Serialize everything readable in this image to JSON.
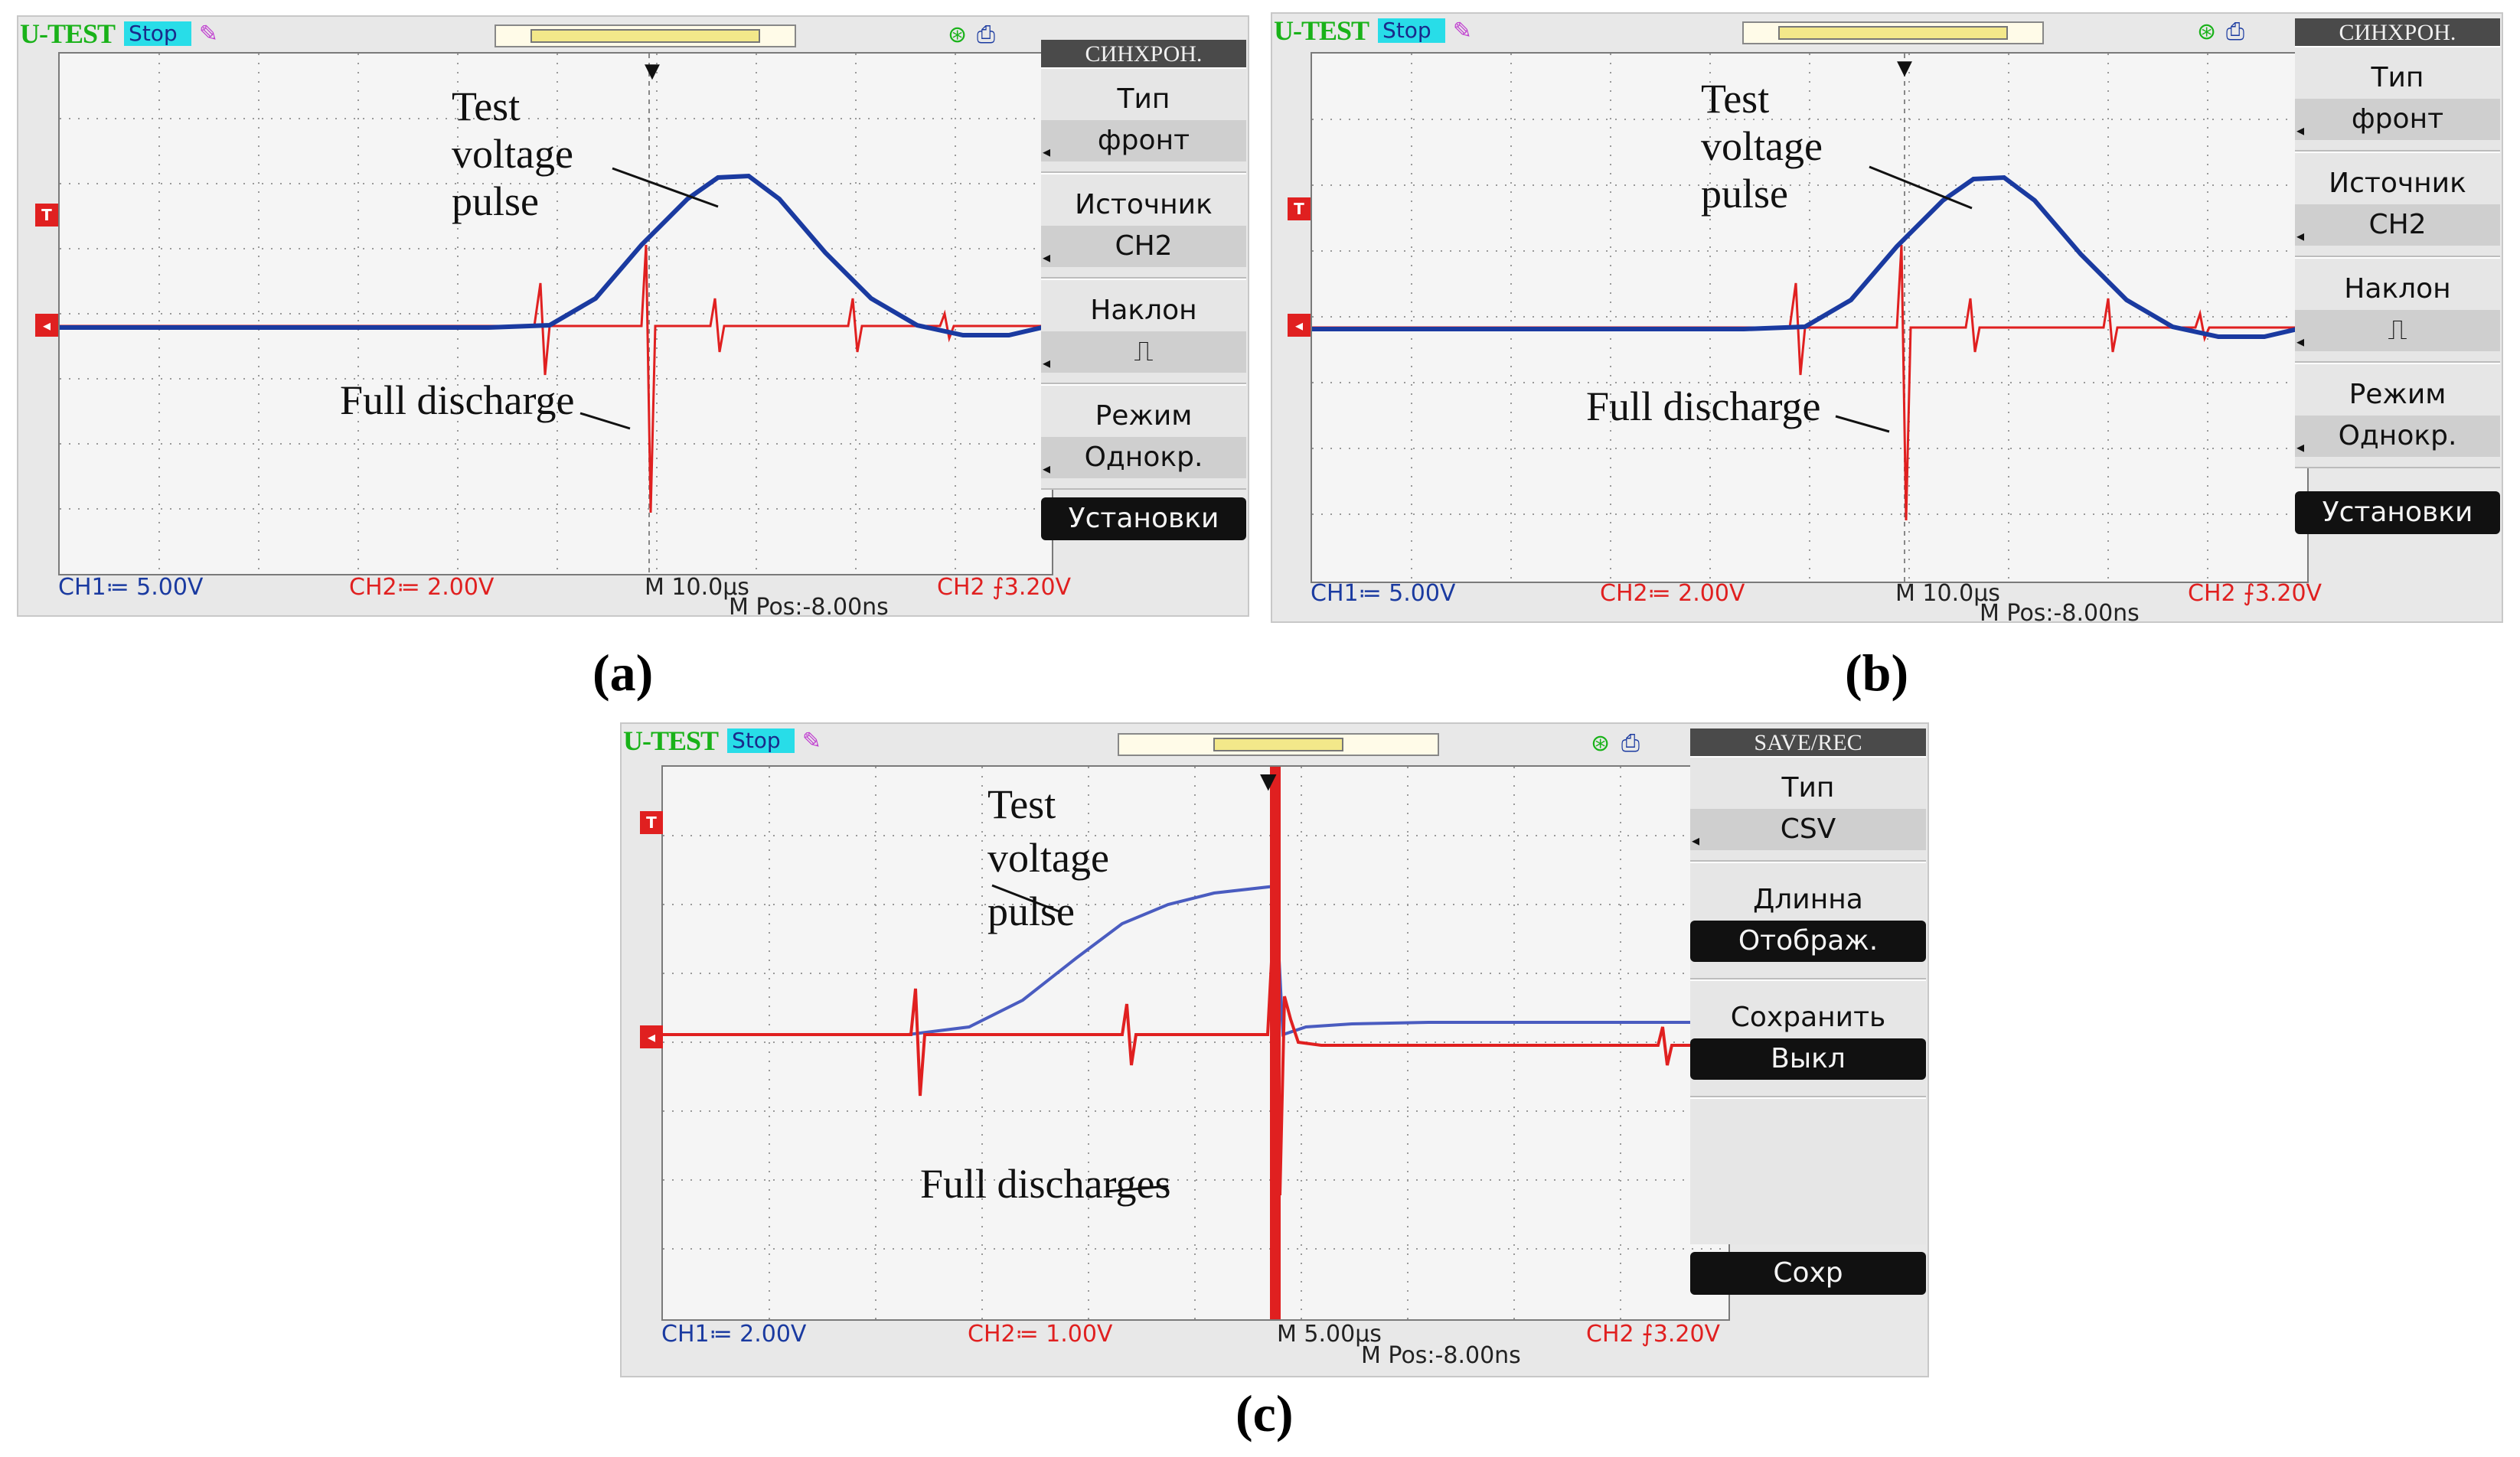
{
  "screens": [
    {
      "id": "a",
      "brand": "U-TEST",
      "run_state": "Stop",
      "menu": {
        "title": "СИНХРОН.",
        "items": [
          {
            "label": "Тип",
            "value": "фронт"
          },
          {
            "label": "Источник",
            "value": "CH2"
          },
          {
            "label": "Наклон",
            "value": "rising-edge-icon"
          },
          {
            "label": "Режим",
            "value": "Однокр."
          }
        ],
        "action": "Установки"
      },
      "status": {
        "ch1": "CH1≔ 5.00V",
        "ch2": "CH2≔ 2.00V",
        "timebase": "M 10.0μs",
        "mpos": "M Pos:-8.00ns",
        "trig": "CH2 ⨍3.20V"
      },
      "annotations": {
        "pulse": [
          "Test",
          "voltage",
          "pulse"
        ],
        "discharge": "Full discharge"
      },
      "caption": "(a)"
    },
    {
      "id": "b",
      "brand": "U-TEST",
      "run_state": "Stop",
      "menu": {
        "title": "СИНХРОН.",
        "items": [
          {
            "label": "Тип",
            "value": "фронт"
          },
          {
            "label": "Источник",
            "value": "CH2"
          },
          {
            "label": "Наклон",
            "value": "rising-edge-icon"
          },
          {
            "label": "Режим",
            "value": "Однокр."
          }
        ],
        "action": "Установки"
      },
      "status": {
        "ch1": "CH1≔ 5.00V",
        "ch2": "CH2≔ 2.00V",
        "timebase": "M 10.0μs",
        "mpos": "M Pos:-8.00ns",
        "trig": "CH2 ⨍3.20V"
      },
      "annotations": {
        "pulse": [
          "Test",
          "voltage",
          "pulse"
        ],
        "discharge": "Full discharge"
      },
      "caption": "(b)"
    },
    {
      "id": "c",
      "brand": "U-TEST",
      "run_state": "Stop",
      "menu": {
        "title": "SAVE/REC",
        "items": [
          {
            "label": "Тип",
            "value": "CSV"
          },
          {
            "label": "Длинна",
            "value": "Отображ."
          },
          {
            "label": "Сохранить",
            "value": "Выкл"
          }
        ],
        "action": "Сохр"
      },
      "status": {
        "ch1": "CH1≔ 2.00V",
        "ch2": "CH2≔ 1.00V",
        "timebase": "M 5.00μs",
        "mpos": "M Pos:-8.00ns",
        "trig": "CH2 ⨍3.20V"
      },
      "annotations": {
        "pulse": [
          "Test",
          "voltage",
          "pulse"
        ],
        "discharge": "Full discharges"
      },
      "caption": "(c)"
    }
  ],
  "colors": {
    "ch1": "#1a3aa0",
    "ch2": "#e02020",
    "brand": "#19b219",
    "menu_head": "#4a4a4a"
  },
  "icons": {
    "run_pen": "pen-icon",
    "usb": "usb-icon",
    "printer": "printer-icon",
    "trigger_marker": "trigger-t-icon"
  }
}
